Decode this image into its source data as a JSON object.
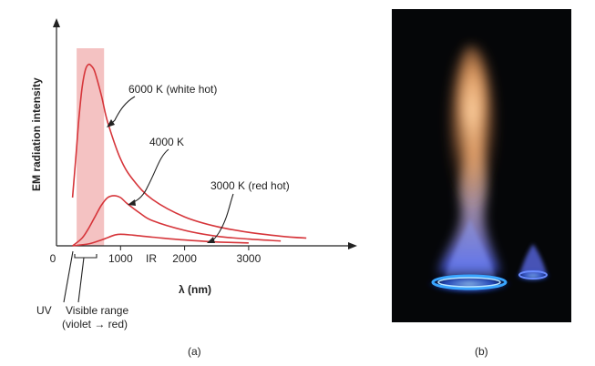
{
  "chart_data": {
    "type": "line",
    "title": "",
    "xlabel": "λ (nm)",
    "ylabel": "EM radiation intensity",
    "xlim": [
      0,
      3900
    ],
    "ylim": [
      0,
      1.0
    ],
    "x_ticks": [
      0,
      1000,
      2000,
      3000
    ],
    "x_tick_labels": [
      "0",
      "1000",
      "2000",
      "3000"
    ],
    "visible_range_nm": [
      400,
      700
    ],
    "series": [
      {
        "name": "6000 K (white hot)",
        "temperature_K": 6000,
        "x": [
          250,
          300,
          350,
          400,
          450,
          500,
          550,
          600,
          700,
          800,
          1000,
          1200,
          1500,
          2000,
          2500,
          3000,
          3500,
          3900
        ],
        "y": [
          0.25,
          0.45,
          0.66,
          0.82,
          0.91,
          0.94,
          0.93,
          0.9,
          0.78,
          0.64,
          0.45,
          0.34,
          0.24,
          0.15,
          0.1,
          0.07,
          0.05,
          0.04
        ]
      },
      {
        "name": "4000 K",
        "temperature_K": 4000,
        "x": [
          250,
          400,
          500,
          600,
          700,
          800,
          900,
          1000,
          1100,
          1300,
          1500,
          2000,
          2500,
          3000,
          3500
        ],
        "y": [
          0.0,
          0.04,
          0.09,
          0.15,
          0.21,
          0.25,
          0.26,
          0.25,
          0.22,
          0.17,
          0.13,
          0.08,
          0.05,
          0.035,
          0.025
        ]
      },
      {
        "name": "3000 K (red hot)",
        "temperature_K": 3000,
        "x": [
          250,
          500,
          700,
          900,
          1000,
          1200,
          1500,
          2000,
          2500,
          3000
        ],
        "y": [
          0.0,
          0.01,
          0.03,
          0.055,
          0.06,
          0.055,
          0.045,
          0.03,
          0.02,
          0.015
        ]
      }
    ],
    "annotations": {
      "ir": "IR",
      "uv": "UV",
      "visible_line1": "Visible range",
      "visible_line2_start": "(violet ",
      "visible_arrow": "→",
      "visible_line2_end": " red)"
    },
    "grid": false,
    "legend": "none"
  },
  "captions": {
    "a": "(a)",
    "b": "(b)"
  },
  "colors": {
    "curve": "#d6353a",
    "band": "#f2b7b7",
    "axis": "#222222"
  }
}
